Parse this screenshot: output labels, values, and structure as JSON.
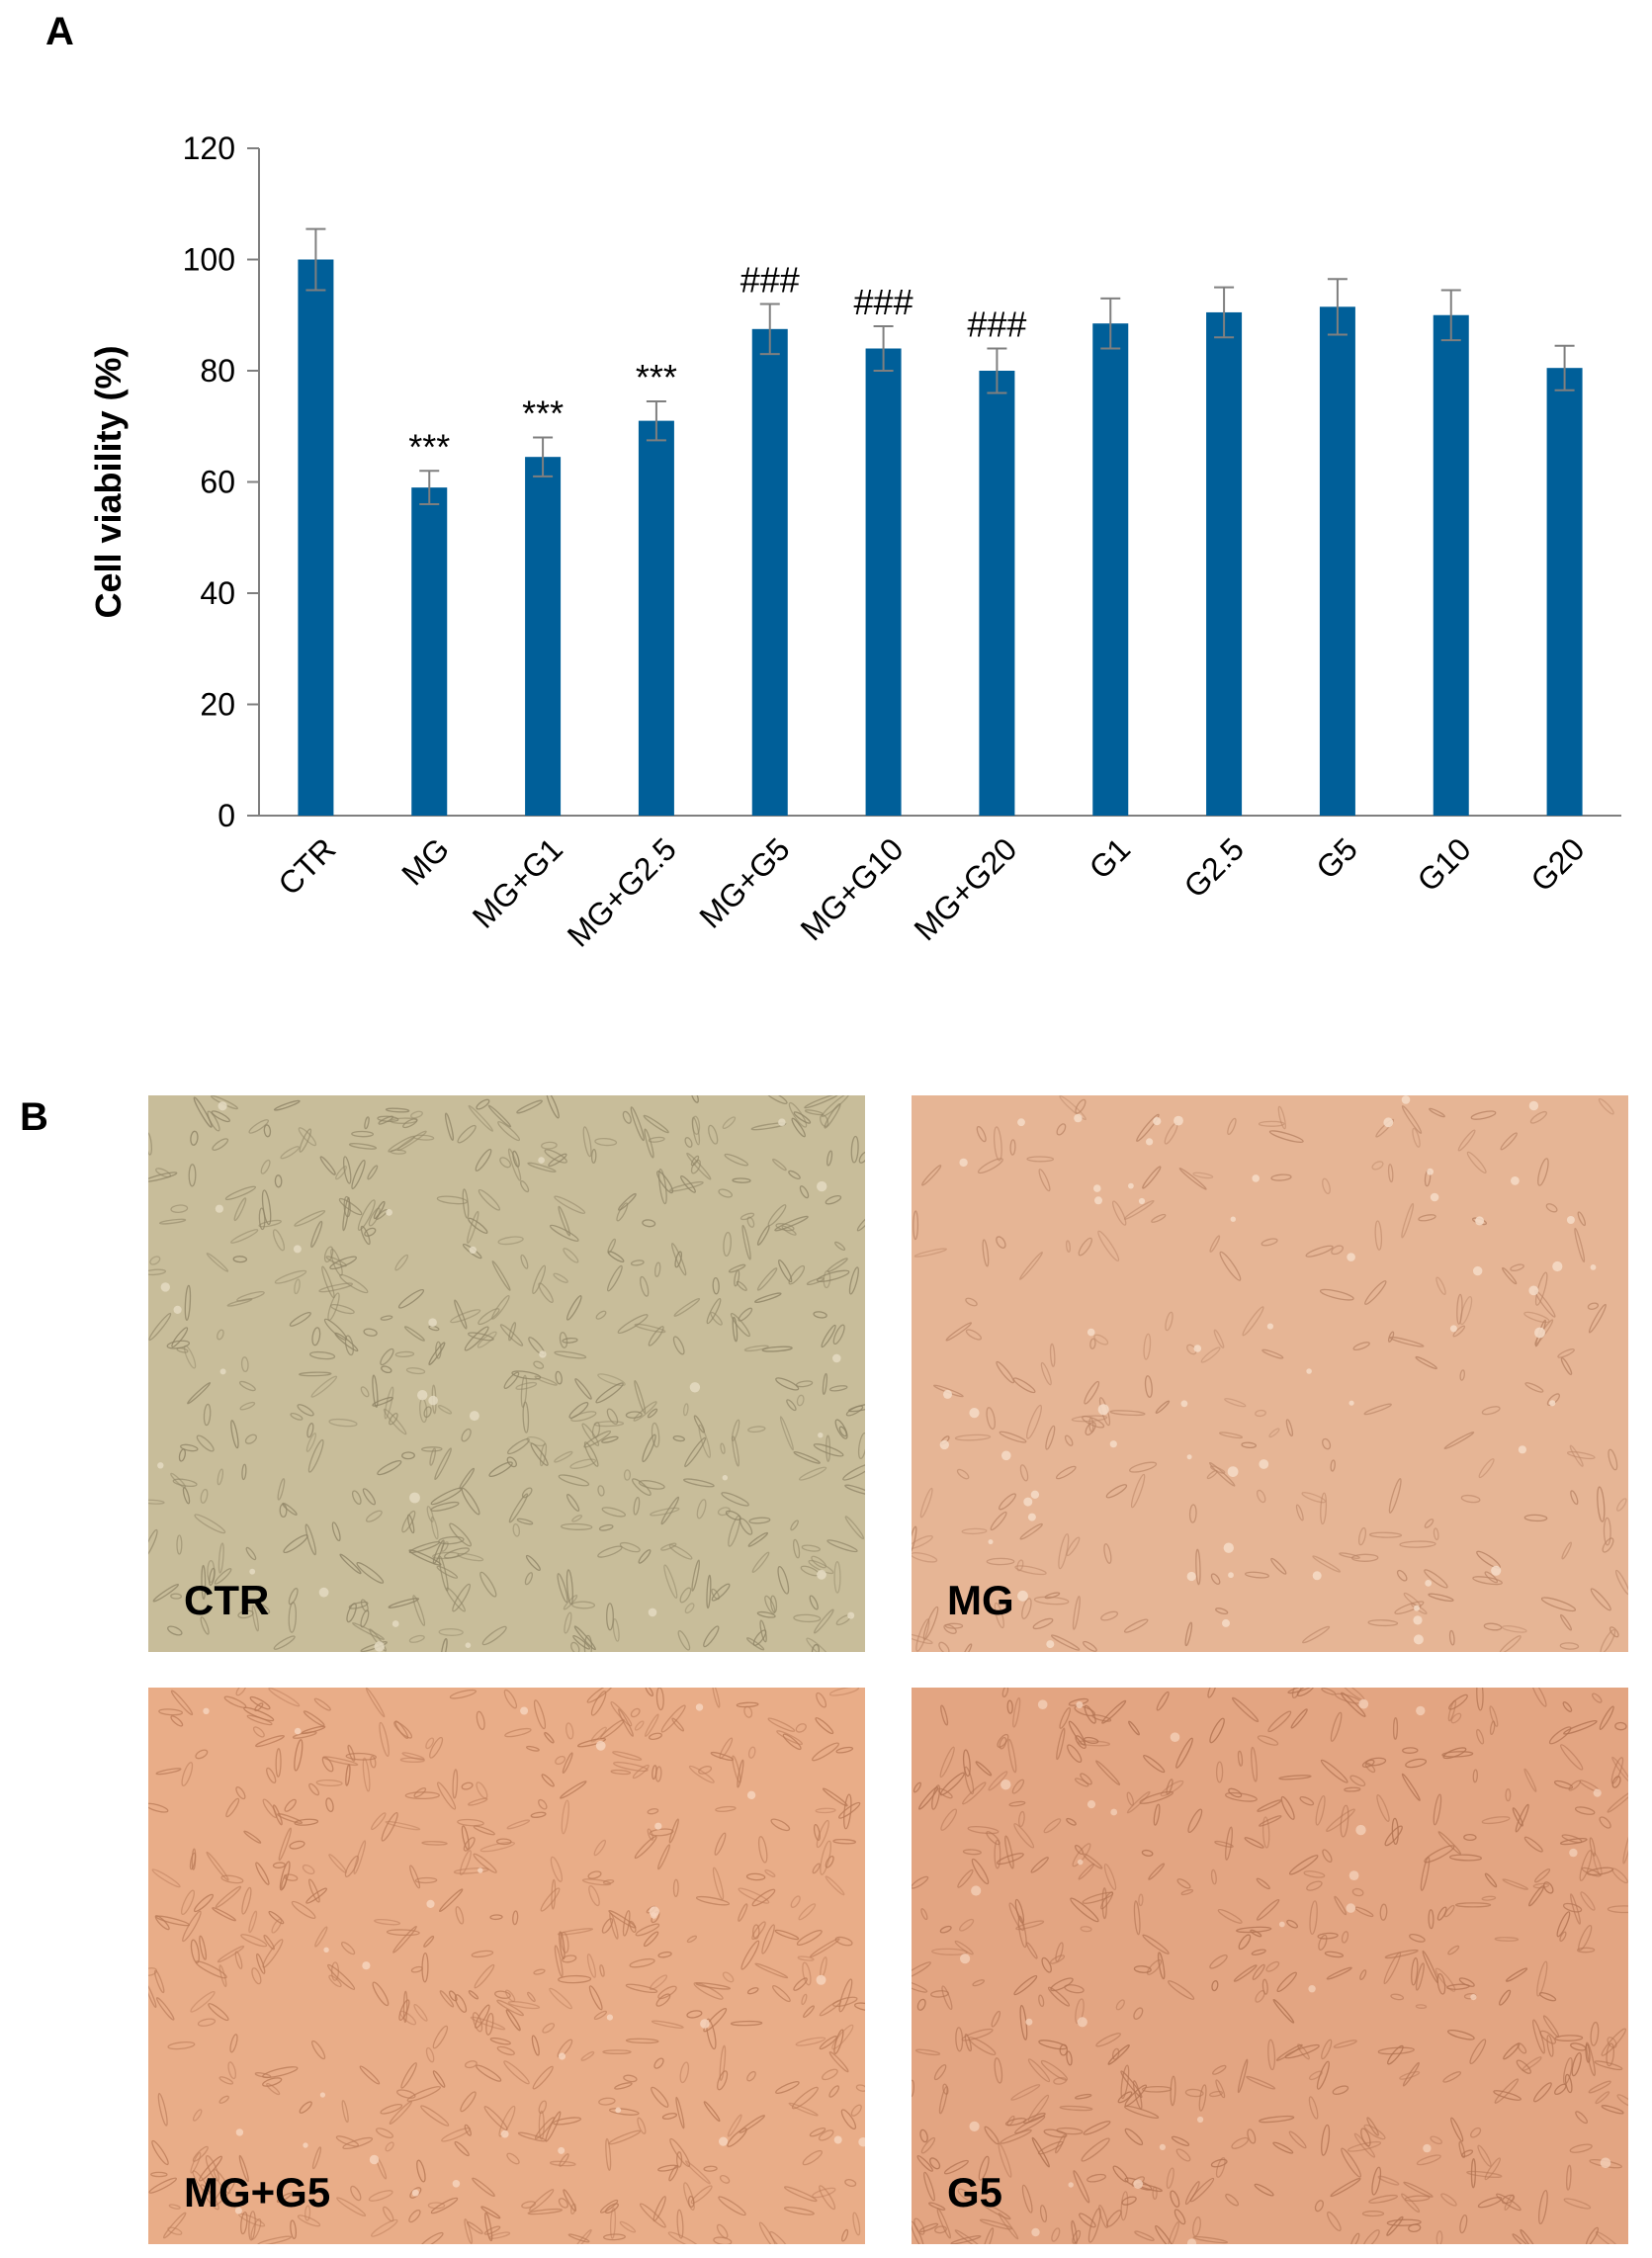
{
  "panels": {
    "a_letter": "A",
    "b_letter": "B"
  },
  "chart_data": {
    "type": "bar",
    "title": "",
    "ylabel": "Cell viability (%)",
    "xlabel": "",
    "ylim": [
      0,
      120
    ],
    "yticks": [
      0,
      20,
      40,
      60,
      80,
      100,
      120
    ],
    "categories": [
      "CTR",
      "MG",
      "MG+G1",
      "MG+G2.5",
      "MG+G5",
      "MG+G10",
      "MG+G20",
      "G1",
      "G2.5",
      "G5",
      "G10",
      "G20"
    ],
    "values": [
      100,
      59,
      64.5,
      71,
      87.5,
      84,
      80,
      88.5,
      90.5,
      91.5,
      90,
      80.5
    ],
    "errors": [
      5.5,
      3,
      3.5,
      3.5,
      4.5,
      4,
      4,
      4.5,
      4.5,
      5,
      4.5,
      4
    ],
    "annotations": [
      "",
      "***",
      "***",
      "***",
      "###",
      "###",
      "###",
      "",
      "",
      "",
      "",
      ""
    ],
    "bar_color": "#005f99",
    "error_color": "#7f7f7f",
    "grid": false,
    "legend": "none"
  },
  "micrographs": [
    {
      "label": "CTR",
      "bg": "#c8bd9a",
      "cell": "#8f8466",
      "cell_light": "#e4dbc2"
    },
    {
      "label": "MG",
      "bg": "#e6b595",
      "cell": "#b98465",
      "cell_light": "#f5dcc8"
    },
    {
      "label": "MG+G5",
      "bg": "#e9ad88",
      "cell": "#b97a57",
      "cell_light": "#f6d3bd"
    },
    {
      "label": "G5",
      "bg": "#e3a582",
      "cell": "#b27352",
      "cell_light": "#f2cdb5"
    }
  ]
}
